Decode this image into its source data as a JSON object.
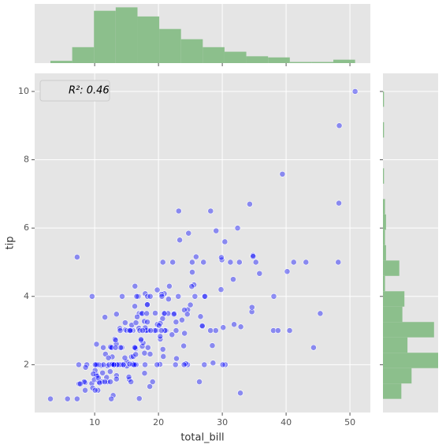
{
  "chart_data": [
    {
      "type": "scatter",
      "xlabel": "total_bill",
      "ylabel": "tip",
      "legend": "R²: 0.46",
      "color": "#0000ff",
      "xlim": [
        0.6,
        53.2
      ],
      "ylim": [
        0.6,
        10.53
      ],
      "xticks": [
        10,
        20,
        30,
        40,
        50
      ],
      "yticks": [
        2,
        4,
        6,
        8,
        10
      ],
      "grid": true,
      "x": [
        16.99,
        10.34,
        21.01,
        23.68,
        24.59,
        25.29,
        8.77,
        26.88,
        15.04,
        14.78,
        10.27,
        35.26,
        15.42,
        18.43,
        14.83,
        21.58,
        10.33,
        16.29,
        16.97,
        20.65,
        17.92,
        20.29,
        15.77,
        39.42,
        19.82,
        17.81,
        13.37,
        12.69,
        21.7,
        19.65,
        9.55,
        18.35,
        15.06,
        20.69,
        17.78,
        24.06,
        16.31,
        16.93,
        18.69,
        31.27,
        16.04,
        17.46,
        13.94,
        9.68,
        30.4,
        18.29,
        22.23,
        32.4,
        28.55,
        18.04,
        12.54,
        10.29,
        34.81,
        9.94,
        25.56,
        19.49,
        38.01,
        26.41,
        11.24,
        48.27,
        20.29,
        13.81,
        11.02,
        18.29,
        17.59,
        20.08,
        16.45,
        3.07,
        20.23,
        15.01,
        12.02,
        17.07,
        26.86,
        25.28,
        14.73,
        10.51,
        17.92,
        27.2,
        22.76,
        17.29,
        19.44,
        16.66,
        10.07,
        32.68,
        15.98,
        34.83,
        13.03,
        18.28,
        24.71,
        21.16,
        28.97,
        22.49,
        5.75,
        16.32,
        22.75,
        40.17,
        27.28,
        12.03,
        21.01,
        12.46,
        11.35,
        15.38,
        44.3,
        22.42,
        20.92,
        15.36,
        20.49,
        25.21,
        18.24,
        14.31,
        14.0,
        7.25,
        38.07,
        23.95,
        25.71,
        17.31,
        29.93,
        10.65,
        12.43,
        24.08,
        11.69,
        13.42,
        14.26,
        15.95,
        12.48,
        29.8,
        8.52,
        14.52,
        11.38,
        22.82,
        19.08,
        20.27,
        11.17,
        12.26,
        18.26,
        8.51,
        10.33,
        14.15,
        16.0,
        13.16,
        17.47,
        34.3,
        41.19,
        27.05,
        16.43,
        8.35,
        18.64,
        11.87,
        9.78,
        7.51,
        14.07,
        13.13,
        17.26,
        24.55,
        19.77,
        29.85,
        48.17,
        25.0,
        13.39,
        16.49,
        21.5,
        12.66,
        16.21,
        13.81,
        17.51,
        24.52,
        20.76,
        31.71,
        10.59,
        10.63,
        50.81,
        15.81,
        7.25,
        31.85,
        16.82,
        32.9,
        17.89,
        14.48,
        9.6,
        34.63,
        34.65,
        23.33,
        45.35,
        23.17,
        40.55,
        20.69,
        20.9,
        30.46,
        18.15,
        23.1,
        15.69,
        19.81,
        28.44,
        15.48,
        16.58,
        7.56,
        10.34,
        43.11,
        13.0,
        13.51,
        18.71,
        12.74,
        13.0,
        16.4,
        20.53,
        16.47,
        26.59,
        38.73,
        24.27,
        12.76,
        30.06,
        25.89,
        48.33,
        13.27,
        28.17,
        12.9,
        28.15,
        11.59,
        7.74,
        30.14,
        12.16,
        13.42,
        8.58,
        15.98,
        13.42,
        16.27,
        10.09,
        20.45,
        13.28,
        22.12,
        24.01,
        15.69,
        11.61,
        10.77,
        15.53,
        10.07,
        12.6,
        32.83,
        35.83,
        29.03,
        27.18,
        22.67,
        17.82,
        18.78
      ],
      "y": [
        1.01,
        1.66,
        3.5,
        3.31,
        3.61,
        4.71,
        2.0,
        3.12,
        1.96,
        3.23,
        1.71,
        5.0,
        1.57,
        3.0,
        3.02,
        3.92,
        1.67,
        3.71,
        3.5,
        3.35,
        4.08,
        2.75,
        2.23,
        7.58,
        3.18,
        2.34,
        2.0,
        2.0,
        4.3,
        3.0,
        1.45,
        2.5,
        3.0,
        2.45,
        3.27,
        3.6,
        2.0,
        3.07,
        2.31,
        5.0,
        2.24,
        2.54,
        3.06,
        1.32,
        5.6,
        3.0,
        5.0,
        6.0,
        2.05,
        3.0,
        2.5,
        2.6,
        5.2,
        1.56,
        4.34,
        3.51,
        3.0,
        1.5,
        1.76,
        6.73,
        3.21,
        2.0,
        1.98,
        3.76,
        2.64,
        3.15,
        2.47,
        1.0,
        2.01,
        2.09,
        1.97,
        3.0,
        3.14,
        5.0,
        2.2,
        1.25,
        3.08,
        4.0,
        3.0,
        2.71,
        3.0,
        3.4,
        1.83,
        5.0,
        2.03,
        5.17,
        2.0,
        4.0,
        5.85,
        3.0,
        3.0,
        3.5,
        1.0,
        4.3,
        3.25,
        4.73,
        4.0,
        1.5,
        3.0,
        1.5,
        2.5,
        3.0,
        2.5,
        3.48,
        4.08,
        1.64,
        4.06,
        4.29,
        3.76,
        4.0,
        3.0,
        1.0,
        4.0,
        2.55,
        4.0,
        3.5,
        5.07,
        1.5,
        1.8,
        2.92,
        2.31,
        1.68,
        2.5,
        2.0,
        2.52,
        4.2,
        1.48,
        2.0,
        2.0,
        2.18,
        1.5,
        2.83,
        1.5,
        2.0,
        3.25,
        1.25,
        2.0,
        2.0,
        2.0,
        2.75,
        3.5,
        6.7,
        5.0,
        5.0,
        2.3,
        1.5,
        1.36,
        1.63,
        1.73,
        2.0,
        2.5,
        2.0,
        2.74,
        2.0,
        2.0,
        5.14,
        5.0,
        3.75,
        2.61,
        2.0,
        3.5,
        2.5,
        2.0,
        2.0,
        3.0,
        3.48,
        2.24,
        4.5,
        1.61,
        2.0,
        10.0,
        3.16,
        5.15,
        3.18,
        4.0,
        3.11,
        2.0,
        2.0,
        4.0,
        3.55,
        3.68,
        5.65,
        3.5,
        6.5,
        3.0,
        5.0,
        3.5,
        2.0,
        3.5,
        4.0,
        1.5,
        4.19,
        2.56,
        2.02,
        4.0,
        1.44,
        2.0,
        5.0,
        2.0,
        2.0,
        4.0,
        2.01,
        2.0,
        2.5,
        4.0,
        3.23,
        3.41,
        3.0,
        2.03,
        2.23,
        2.0,
        5.16,
        9.0,
        2.5,
        6.5,
        1.1,
        3.0,
        1.5,
        1.44,
        3.09,
        2.2,
        3.48,
        1.92,
        3.0,
        1.58,
        2.5,
        2.0,
        3.0,
        2.72,
        2.88,
        2.0,
        3.0,
        3.39,
        1.47,
        3.0,
        1.25,
        1.0,
        1.17,
        4.67,
        5.92,
        2.0,
        2.0,
        1.75,
        3.0
      ]
    },
    {
      "type": "histogram",
      "orientation": "vertical",
      "color": "#8cbf8c",
      "xlim": [
        0.6,
        53.2
      ],
      "ylim": [
        0,
        52
      ],
      "bins": [
        3.07,
        6.48,
        9.89,
        13.3,
        16.71,
        20.12,
        23.53,
        26.94,
        30.35,
        33.76,
        37.17,
        40.58,
        43.99,
        47.4,
        50.81
      ],
      "values": [
        2,
        14,
        46,
        49,
        41,
        30,
        21,
        14,
        10,
        6,
        5,
        1,
        1,
        3
      ]
    },
    {
      "type": "histogram",
      "orientation": "horizontal",
      "color": "#8cbf8c",
      "xlim": [
        0,
        54
      ],
      "ylim": [
        0.6,
        10.53
      ],
      "bins": [
        1,
        1.45,
        1.9,
        2.35,
        2.8,
        3.25,
        3.7,
        4.15,
        4.6,
        5.05,
        5.5,
        5.95,
        6.4,
        6.85,
        7.3,
        7.75,
        8.2,
        8.65,
        9.1,
        9.55,
        10
      ],
      "values": [
        18,
        28,
        54,
        24,
        50,
        19,
        21,
        2,
        16,
        3,
        2,
        3,
        2,
        0,
        1,
        0,
        0,
        1,
        0,
        1
      ]
    }
  ]
}
